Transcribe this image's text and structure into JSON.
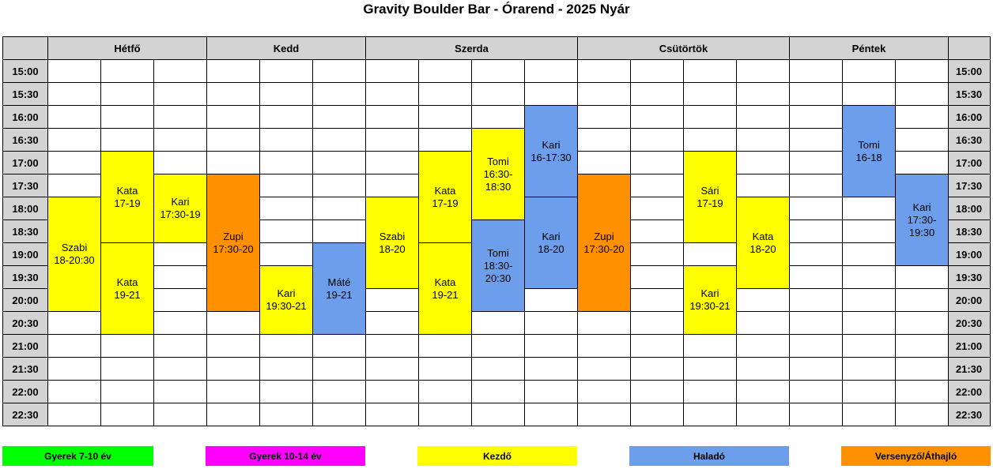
{
  "title": "Gravity Boulder Bar - Órarend - 2025 Nyár",
  "days": [
    "Hétfő",
    "Kedd",
    "Szerda",
    "Csütörtök",
    "Péntek"
  ],
  "times": [
    "15:00",
    "15:30",
    "16:00",
    "16:30",
    "17:00",
    "17:30",
    "18:00",
    "18:30",
    "19:00",
    "19:30",
    "20:00",
    "20:30",
    "21:00",
    "21:30",
    "22:00",
    "22:30"
  ],
  "events": [
    {
      "name": "Szabi",
      "time": "18-20:30"
    },
    {
      "name": "Kata",
      "time": "17-19"
    },
    {
      "name": "Kata",
      "time": "19-21"
    },
    {
      "name": "Kari",
      "time": "17:30-19"
    },
    {
      "name": "Zupi",
      "time": "17:30-20"
    },
    {
      "name": "Kari",
      "time": "19:30-21"
    },
    {
      "name": "Máté",
      "time": "19-21"
    },
    {
      "name": "Szabi",
      "time": "18-20"
    },
    {
      "name": "Kata",
      "time": "17-19"
    },
    {
      "name": "Kata",
      "time": "19-21"
    },
    {
      "name": "Tomi",
      "time": "16:30-18:30"
    },
    {
      "name": "Tomi",
      "time": "18:30-20:30"
    },
    {
      "name": "Kari",
      "time": "16-17:30"
    },
    {
      "name": "Kari",
      "time": "18-20"
    },
    {
      "name": "Zupi",
      "time": "17:30-20"
    },
    {
      "name": "Sári",
      "time": "17-19"
    },
    {
      "name": "Kari",
      "time": "19:30-21"
    },
    {
      "name": "Kata",
      "time": "18-20"
    },
    {
      "name": "Tomi",
      "time": "16-18"
    },
    {
      "name": "Kari",
      "time": "17:30-19:30"
    }
  ],
  "legend": [
    "Gyerek 7-10 év",
    "Gyerek 10-14 év",
    "Kezdő",
    "Haladó",
    "Versenyző/Áthajló"
  ]
}
